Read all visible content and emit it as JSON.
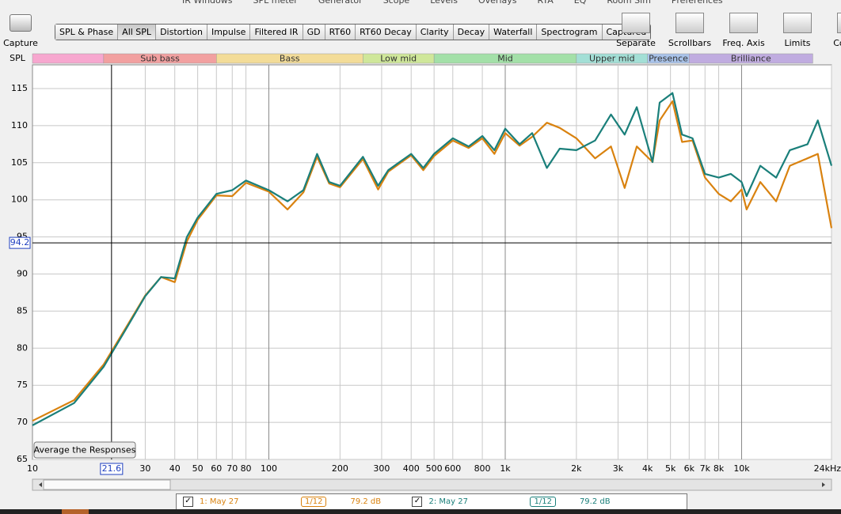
{
  "menu": [
    "IR Windows",
    "SPL meter",
    "Generator",
    "Scope",
    "Levels",
    "Overlays",
    "RTA",
    "EQ",
    "Room Sim",
    "Preferences"
  ],
  "toolbar": {
    "capture": "Capture",
    "tabs": [
      "SPL & Phase",
      "All SPL",
      "Distortion",
      "Impulse",
      "Filtered IR",
      "GD",
      "RT60",
      "RT60 Decay",
      "Clarity",
      "Decay",
      "Waterfall",
      "Spectrogram",
      "Captured"
    ],
    "selected_tab": "All SPL",
    "tools": [
      "Separate",
      "Scrollbars",
      "Freq. Axis",
      "Limits",
      "Controls"
    ]
  },
  "bands": {
    "label": "SPL",
    "items": [
      {
        "name": null,
        "from": 10,
        "to": 20,
        "color": "#f7a7cf"
      },
      {
        "name": "Sub bass",
        "from": 20,
        "to": 60,
        "color": "#f2a0a0"
      },
      {
        "name": "Bass",
        "from": 60,
        "to": 250,
        "color": "#f3dc98"
      },
      {
        "name": "Low mid",
        "from": 250,
        "to": 500,
        "color": "#cfe79a"
      },
      {
        "name": "Mid",
        "from": 500,
        "to": 2000,
        "color": "#a3e0a8"
      },
      {
        "name": "Upper mid",
        "from": 2000,
        "to": 4000,
        "color": "#a3dfd6"
      },
      {
        "name": "Presence",
        "from": 4000,
        "to": 6000,
        "color": "#a9c3ea"
      },
      {
        "name": "Brilliance",
        "from": 6000,
        "to": 20000,
        "color": "#c0ace0"
      }
    ]
  },
  "chart_data": {
    "type": "line",
    "log_x": true,
    "grid": true,
    "x": [
      10,
      15,
      20,
      25,
      30,
      35,
      40,
      45,
      50,
      60,
      70,
      80,
      100,
      120,
      140,
      160,
      180,
      200,
      250,
      290,
      320,
      400,
      450,
      500,
      600,
      700,
      800,
      900,
      1000,
      1150,
      1300,
      1500,
      1700,
      2000,
      2400,
      2800,
      3200,
      3600,
      4200,
      4500,
      5100,
      5600,
      6200,
      7000,
      8000,
      9000,
      10000,
      10500,
      12000,
      14000,
      16000,
      19000,
      21000,
      24000
    ],
    "series": [
      {
        "name": "1: May 27",
        "color": "#d9820f",
        "smoothing": "1/12",
        "level": "79.2 dB",
        "checked": true,
        "values": [
          70.2,
          73,
          77.8,
          82.9,
          87.1,
          89.6,
          88.9,
          94.4,
          97.3,
          100.6,
          100.5,
          102.3,
          101.1,
          98.7,
          101,
          105.8,
          102.2,
          101.7,
          105.5,
          101.4,
          103.8,
          106,
          104,
          105.9,
          108,
          107,
          108.3,
          106.2,
          109,
          107.3,
          108.5,
          110.4,
          109.7,
          108.3,
          105.6,
          107.2,
          101.6,
          107.2,
          105.1,
          110.7,
          113.3,
          107.8,
          108,
          103,
          100.8,
          99.8,
          101.4,
          98.7,
          102.4,
          99.8,
          104.6,
          105.6,
          106.2,
          96.2
        ]
      },
      {
        "name": "2: May 27",
        "color": "#1a7f7a",
        "smoothing": "1/12",
        "level": "79.2 dB",
        "checked": true,
        "values": [
          69.6,
          72.6,
          77.5,
          82.7,
          87,
          89.6,
          89.4,
          95,
          97.6,
          100.8,
          101.3,
          102.6,
          101.3,
          99.8,
          101.3,
          106.2,
          102.4,
          101.9,
          105.8,
          101.9,
          104,
          106.2,
          104.3,
          106.2,
          108.3,
          107.2,
          108.6,
          106.7,
          109.6,
          107.5,
          109,
          104.3,
          106.9,
          106.7,
          108,
          111.5,
          108.8,
          112.5,
          105.1,
          113.1,
          114.4,
          108.8,
          108.3,
          103.5,
          103,
          103.5,
          102.4,
          100.5,
          104.6,
          103,
          106.7,
          107.5,
          110.7,
          104.6
        ]
      }
    ],
    "xlim": [
      10,
      24000
    ],
    "ylim": [
      65,
      118.2
    ],
    "xticks": [
      10,
      30,
      40,
      50,
      60,
      70,
      80,
      100,
      200,
      300,
      400,
      500,
      600,
      800,
      {
        "value": 1000,
        "label": "1k"
      },
      {
        "value": 2000,
        "label": "2k"
      },
      {
        "value": 3000,
        "label": "3k"
      },
      {
        "value": 4000,
        "label": "4k"
      },
      {
        "value": 5000,
        "label": "5k"
      },
      {
        "value": 6000,
        "label": "6k"
      },
      {
        "value": 7000,
        "label": "7k"
      },
      {
        "value": 8000,
        "label": "8k"
      },
      {
        "value": 10000,
        "label": "10k"
      },
      {
        "value": 24000,
        "label": "24kHz"
      }
    ],
    "yticks": [
      65,
      70,
      75,
      80,
      85,
      90,
      95,
      100,
      105,
      110,
      115
    ],
    "cursor": {
      "x": 21.6,
      "y": 94.2
    }
  },
  "button": "Average the Responses"
}
